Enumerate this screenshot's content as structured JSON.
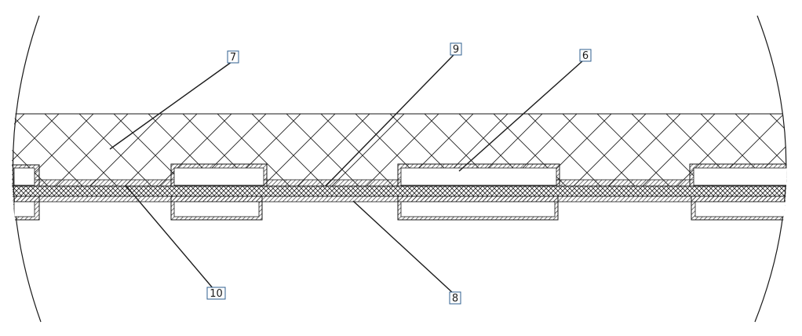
{
  "callouts": [
    {
      "id": "callout-7",
      "label": "7"
    },
    {
      "id": "callout-9",
      "label": "9"
    },
    {
      "id": "callout-6",
      "label": "6"
    },
    {
      "id": "callout-10",
      "label": "10"
    },
    {
      "id": "callout-8",
      "label": "8"
    }
  ],
  "colors": {
    "line": "#1a1a1a",
    "callout_border": "#2f5f8f",
    "background": "#ffffff"
  }
}
